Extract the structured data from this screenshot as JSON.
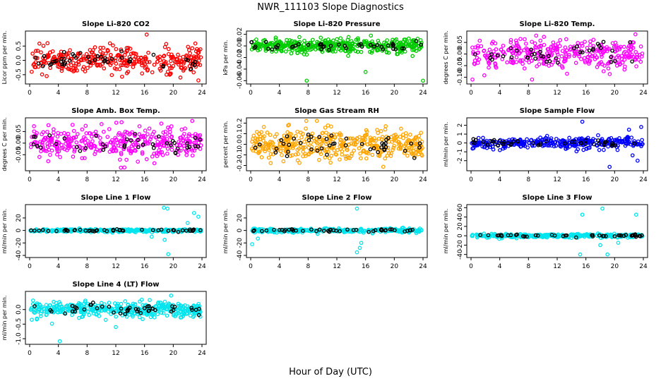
{
  "figure": {
    "title": "NWR_111103  Slope Diagnostics",
    "xlabel": "Hour of Day (UTC)"
  },
  "chart_data": [
    {
      "type": "scatter",
      "title": "Slope Li-820 CO2",
      "ylabel": "Licor ppm per min.",
      "xlim": [
        0,
        24
      ],
      "ylim": [
        -0.75,
        0.95
      ],
      "yticks": [
        "-0.5",
        "0.0",
        "0.5"
      ],
      "ytick_vals": [
        -0.5,
        0,
        0.5
      ],
      "xticks": [
        "0",
        "4",
        "8",
        "12",
        "16",
        "20",
        "24"
      ],
      "spread": 0.22,
      "outliers": [
        [
          16.3,
          0.9
        ],
        [
          19.5,
          -0.5
        ],
        [
          21,
          -0.6
        ],
        [
          23.5,
          -0.7
        ]
      ],
      "series": [
        {
          "color": "#ff0000",
          "count": 340
        },
        {
          "color": "#000000",
          "count": 45
        }
      ]
    },
    {
      "type": "scatter",
      "title": "Slope Li-820 Pressure",
      "ylabel": "kPa per min.",
      "xlim": [
        0,
        24
      ],
      "ylim": [
        -0.062,
        0.022
      ],
      "yticks": [
        "-0.06",
        "-0.04",
        "-0.02",
        "0.00",
        "0.02"
      ],
      "ytick_vals": [
        -0.06,
        -0.04,
        -0.02,
        0,
        0.02
      ],
      "xticks": [
        "0",
        "4",
        "8",
        "12",
        "16",
        "20",
        "24"
      ],
      "spread": 0.006,
      "outliers": [
        [
          7.8,
          -0.06
        ],
        [
          16,
          -0.045
        ],
        [
          24,
          -0.06
        ]
      ],
      "series": [
        {
          "color": "#00cc00",
          "count": 420
        },
        {
          "color": "#000000",
          "count": 45
        }
      ]
    },
    {
      "type": "scatter",
      "title": "Slope Li-820 Temp.",
      "ylabel": "degrees C per min.",
      "xlim": [
        0,
        24
      ],
      "ylim": [
        -0.12,
        0.09
      ],
      "yticks": [
        "-0.10",
        "-0.05",
        "0.00",
        "0.05"
      ],
      "ytick_vals": [
        -0.1,
        -0.05,
        0,
        0.05
      ],
      "xticks": [
        "0",
        "4",
        "8",
        "12",
        "16",
        "20",
        "24"
      ],
      "spread": 0.032,
      "outliers": [
        [
          0.2,
          -0.11
        ],
        [
          8.5,
          -0.11
        ],
        [
          22.9,
          0.085
        ]
      ],
      "series": [
        {
          "color": "#ff00ff",
          "count": 340
        },
        {
          "color": "#000000",
          "count": 40
        }
      ]
    },
    {
      "type": "scatter",
      "title": "Slope Amb. Box Temp.",
      "ylabel": "degrees C per min.",
      "xlim": [
        0,
        24
      ],
      "ylim": [
        -0.11,
        0.1
      ],
      "yticks": [
        "-0.05",
        "0.00",
        "0.05"
      ],
      "ytick_vals": [
        -0.05,
        0,
        0.05
      ],
      "xticks": [
        "0",
        "4",
        "8",
        "12",
        "16",
        "20",
        "24"
      ],
      "spread": 0.035,
      "outliers": [
        [
          13.2,
          -0.105
        ],
        [
          12.8,
          0.09
        ]
      ],
      "series": [
        {
          "color": "#ff00ff",
          "count": 360
        },
        {
          "color": "#000000",
          "count": 40
        }
      ]
    },
    {
      "type": "scatter",
      "title": "Slope Gas Stream RH",
      "ylabel": "percent per min.",
      "xlim": [
        0,
        24
      ],
      "ylim": [
        -0.23,
        0.23
      ],
      "yticks": [
        "-0.2",
        "-0.1",
        "0.0",
        "0.1",
        "0.2"
      ],
      "ytick_vals": [
        -0.2,
        -0.1,
        0,
        0.1,
        0.2
      ],
      "xticks": [
        "0",
        "4",
        "8",
        "12",
        "16",
        "20",
        "24"
      ],
      "spread": 0.075,
      "outliers": [],
      "series": [
        {
          "color": "#ffa500",
          "count": 420
        },
        {
          "color": "#000000",
          "count": 45
        }
      ]
    },
    {
      "type": "scatter",
      "title": "Slope Sample Flow",
      "ylabel": "ml/min per min.",
      "xlim": [
        0,
        24
      ],
      "ylim": [
        -2.9,
        2.6
      ],
      "yticks": [
        "-2",
        "-1",
        "0",
        "1",
        "2"
      ],
      "ytick_vals": [
        -2,
        -1,
        0,
        1,
        2
      ],
      "xticks": [
        "0",
        "4",
        "8",
        "12",
        "16",
        "20",
        "24"
      ],
      "spread": 0.3,
      "outliers": [
        [
          15.5,
          2.4
        ],
        [
          19.3,
          -2.7
        ],
        [
          23.7,
          1.8
        ],
        [
          23.2,
          -2
        ],
        [
          22,
          1.5
        ],
        [
          22.5,
          -1.4
        ]
      ],
      "series": [
        {
          "color": "#0000ff",
          "count": 340
        },
        {
          "color": "#000000",
          "count": 45
        }
      ]
    },
    {
      "type": "scatter",
      "title": "Slope Line 1 Flow",
      "ylabel": "ml/min per min.",
      "xlim": [
        0,
        24
      ],
      "ylim": [
        -40,
        38
      ],
      "yticks": [
        "-40",
        "-20",
        "0",
        "20"
      ],
      "ytick_vals": [
        -40,
        -20,
        0,
        20
      ],
      "xticks": [
        "0",
        "4",
        "8",
        "12",
        "16",
        "20",
        "24"
      ],
      "spread": 1.2,
      "outliers": [
        [
          18.7,
          37
        ],
        [
          19.2,
          35
        ],
        [
          19.3,
          -38
        ],
        [
          17,
          -10
        ],
        [
          23.5,
          22
        ],
        [
          22.9,
          28
        ],
        [
          18.8,
          -15
        ],
        [
          22,
          12
        ]
      ],
      "series": [
        {
          "color": "#00e5ee",
          "count": 320
        },
        {
          "color": "#000000",
          "count": 45
        }
      ]
    },
    {
      "type": "scatter",
      "title": "Slope Line 2 Flow",
      "ylabel": "ml/min per min.",
      "xlim": [
        0,
        24
      ],
      "ylim": [
        -40,
        38
      ],
      "yticks": [
        "-40",
        "-20",
        "0",
        "20"
      ],
      "ytick_vals": [
        -40,
        -20,
        0,
        20
      ],
      "xticks": [
        "0",
        "4",
        "8",
        "12",
        "16",
        "20",
        "24"
      ],
      "spread": 1.5,
      "outliers": [
        [
          0.2,
          -22
        ],
        [
          1,
          -13
        ],
        [
          14.8,
          35
        ],
        [
          14.8,
          -35
        ],
        [
          15.4,
          -20
        ],
        [
          15.2,
          -28
        ]
      ],
      "series": [
        {
          "color": "#00e5ee",
          "count": 300
        },
        {
          "color": "#000000",
          "count": 45
        }
      ]
    },
    {
      "type": "scatter",
      "title": "Slope Line 3 Flow",
      "ylabel": "ml/min per min.",
      "xlim": [
        0,
        24
      ],
      "ylim": [
        -42,
        62
      ],
      "yticks": [
        "-40",
        "-20",
        "0",
        "20",
        "40",
        "60"
      ],
      "ytick_vals": [
        -40,
        -20,
        0,
        20,
        40,
        60
      ],
      "xticks": [
        "0",
        "4",
        "8",
        "12",
        "16",
        "20",
        "24"
      ],
      "spread": 2,
      "outliers": [
        [
          15.5,
          45
        ],
        [
          18.3,
          58
        ],
        [
          19,
          -40
        ],
        [
          23,
          45
        ],
        [
          15.2,
          -40
        ],
        [
          18,
          -20
        ],
        [
          20.5,
          -15
        ]
      ],
      "series": [
        {
          "color": "#00e5ee",
          "count": 320
        },
        {
          "color": "#000000",
          "count": 45
        }
      ]
    },
    {
      "type": "scatter",
      "title": "Slope Line 4 (LT) Flow",
      "ylabel": "ml/min per min.",
      "xlim": [
        0,
        24
      ],
      "ylim": [
        -1.12,
        0.55
      ],
      "yticks": [
        "-1.0",
        "-0.5",
        "0.0"
      ],
      "ytick_vals": [
        -1,
        -0.5,
        0
      ],
      "xticks": [
        "0",
        "4",
        "8",
        "12",
        "16",
        "20",
        "24"
      ],
      "spread": 0.12,
      "outliers": [
        [
          4.2,
          -1.1
        ],
        [
          19.7,
          0.48
        ],
        [
          0.3,
          -0.35
        ],
        [
          12,
          -0.6
        ]
      ],
      "series": [
        {
          "color": "#00e5ee",
          "count": 420
        },
        {
          "color": "#000000",
          "count": 45
        }
      ]
    }
  ]
}
